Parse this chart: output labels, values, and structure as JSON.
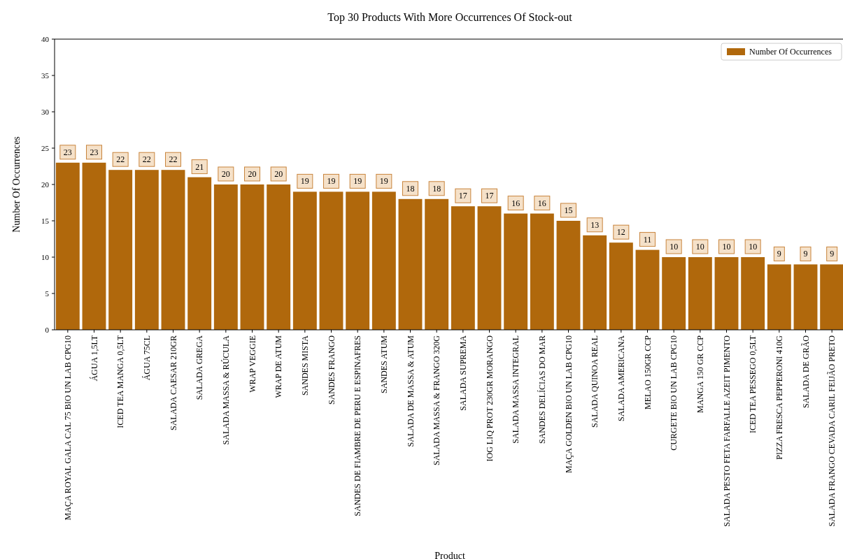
{
  "chart_data": {
    "type": "bar",
    "title": "Top 30 Products With More Occurrences Of Stock-out",
    "xlabel": "Product",
    "ylabel": "Number Of Occurrences",
    "categories": [
      "MAÇA ROYAL GALA CAL 75 BIO UN LAB CPG10",
      "ÁGUA 1,5LT",
      "ICED TEA MANGA 0,5LT",
      "ÁGUA 75CL",
      "SALADA CAESAR 210GR",
      "SALADA GREGA",
      "SALADA MASSA & RÚCULA",
      "WRAP VEGGIE",
      "WRAP DE ATUM",
      "SANDES MISTA",
      "SANDES FRANGO",
      "SANDES DE FIAMBRE DE PERU E ESPINAFRES",
      "SANDES ATUM",
      "SALADA DE MASSA & ATUM",
      "SALADA MASSA & FRANGO 320G",
      "SALADA SUPREMA",
      "IOG LIQ PROT 230GR MORANGO",
      "SALADA MASSA INTEGRAL",
      "SANDES DELÍCIAS DO MAR",
      "MAÇA GOLDEN BIO UN LAB CPG10",
      "SALADA QUINOA REAL",
      "SALADA AMERICANA",
      "MELAO 150GR CCP",
      "CURGETE BIO UN LAB CPG10",
      "MANGA 150 GR CCP",
      "SALADA PESTO FETA FARFALLE AZEIT PIMENTO",
      "ICED TEA PESSEGO 0,5LT",
      "PIZZA FRESCA PEPPERONI 410G",
      "SALADA DE GRÃO",
      "SALADA FRANGO CEVADA CARIL FEIJÃO PRETO"
    ],
    "series": [
      {
        "name": "Number Of Occurrences",
        "color": "#b0680c",
        "values": [
          23,
          23,
          22,
          22,
          22,
          21,
          20,
          20,
          20,
          19,
          19,
          19,
          19,
          18,
          18,
          17,
          17,
          16,
          16,
          15,
          13,
          12,
          11,
          10,
          10,
          10,
          10,
          9,
          9,
          9
        ]
      }
    ],
    "ylim": [
      0,
      40
    ],
    "yticks": [
      0,
      5,
      10,
      15,
      20,
      25,
      30,
      35,
      40
    ],
    "legend": "top right",
    "data_labels": true
  }
}
